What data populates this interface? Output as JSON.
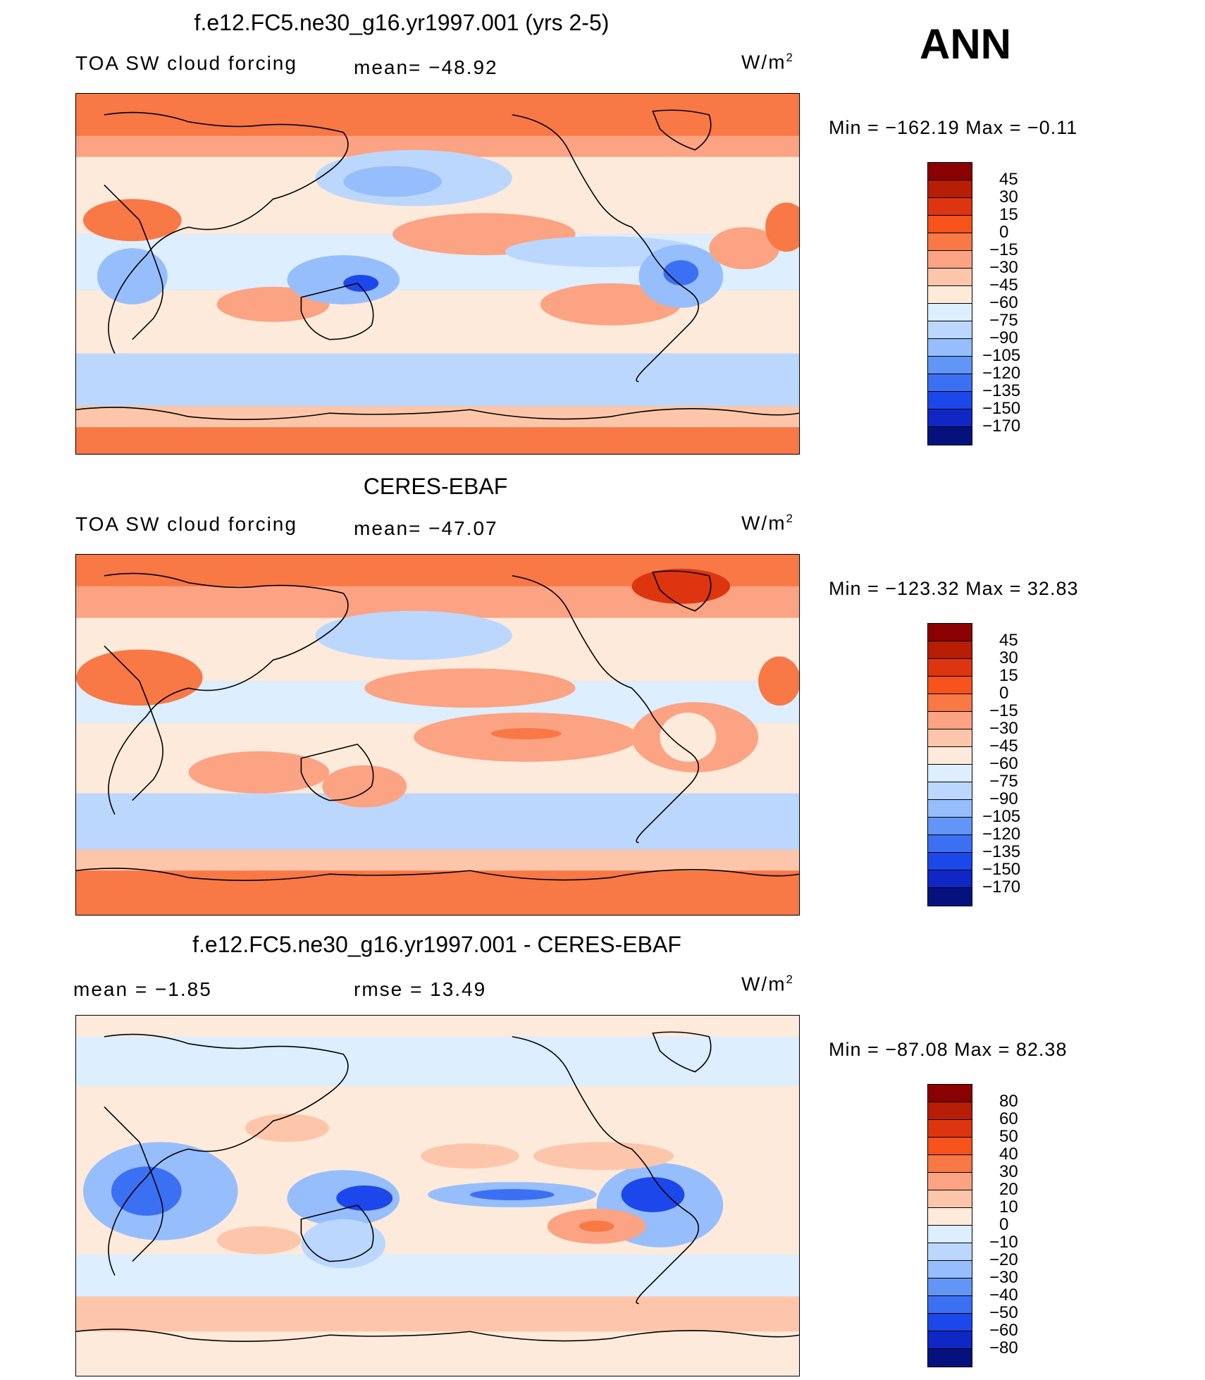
{
  "season": "ANN",
  "units_label": "W/m",
  "units_exp": "2",
  "panels": [
    {
      "title": "f.e12.FC5.ne30_g16.yr1997.001 (yrs 2-5)",
      "left_label": "TOA SW cloud forcing",
      "center_label": "mean= −48.92",
      "min_max": "Min  =  −162.19  Max  =    −0.11"
    },
    {
      "title": "CERES-EBAF",
      "left_label": "TOA SW cloud forcing",
      "center_label": "mean= −47.07",
      "min_max": "Min  =  −123.32  Max  =    32.83"
    },
    {
      "title": "f.e12.FC5.ne30_g16.yr1997.001 - CERES-EBAF",
      "left_label": "mean  =    −1.85",
      "center_label": "rmse  =    13.49",
      "min_max": "Min  =  −87.08  Max  =   82.38"
    }
  ],
  "colorbars": {
    "abs": {
      "labels": [
        "45",
        "30",
        "15",
        "0",
        "−15",
        "−30",
        "−45",
        "−60",
        "−75",
        "−90",
        "−105",
        "−120",
        "−135",
        "−150",
        "−170"
      ],
      "colors": [
        "#8b0000",
        "#b81d05",
        "#dc3510",
        "#f7531a",
        "#f87846",
        "#fba382",
        "#fdc6aa",
        "#feeadb",
        "#dceeff",
        "#bcd7fe",
        "#96befc",
        "#6296f6",
        "#3c70f3",
        "#1c48eb",
        "#0f28c5",
        "#05127e"
      ]
    },
    "diff": {
      "labels": [
        "80",
        "60",
        "50",
        "40",
        "30",
        "20",
        "10",
        "0",
        "−10",
        "−20",
        "−30",
        "−40",
        "−50",
        "−60",
        "−80"
      ],
      "colors": [
        "#8b0000",
        "#b81d05",
        "#dc3510",
        "#f7531a",
        "#f87846",
        "#fba382",
        "#fdc6aa",
        "#feeadb",
        "#dceeff",
        "#bcd7fe",
        "#96befc",
        "#6296f6",
        "#3c70f3",
        "#1c48eb",
        "#0f28c5",
        "#05127e"
      ]
    }
  }
}
